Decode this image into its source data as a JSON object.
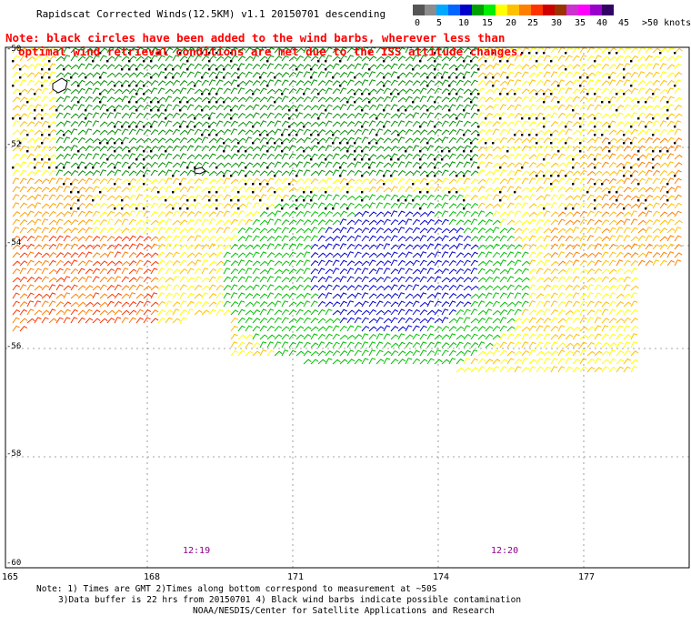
{
  "title": "Rapidscat Corrected Winds(12.5KM) v1.1 20150701 descending",
  "legend": {
    "colors": [
      "#555555",
      "#8c8c8c",
      "#00a8ff",
      "#0066ff",
      "#0000cc",
      "#00a000",
      "#00ee00",
      "#ffff00",
      "#ffc000",
      "#ff7f00",
      "#ff3300",
      "#cc0000",
      "#993300",
      "#cc33cc",
      "#ff00ff",
      "#9900cc",
      "#330066"
    ],
    "labels": [
      "0",
      "5",
      "10",
      "15",
      "20",
      "25",
      "30",
      "35",
      "40",
      "45",
      ">50 knots"
    ]
  },
  "note": {
    "line1": "Note: black circles have been added to the wind barbs, wherever less than",
    "line2": "optimal wind retrieval conditions are met due to the ISS attitude changes."
  },
  "axes": {
    "lat_labels": [
      "-50",
      "-52",
      "-54",
      "-56",
      "-58",
      "-60"
    ],
    "lon_labels": [
      "165",
      "168",
      "171",
      "174",
      "177"
    ]
  },
  "times": [
    "12:19",
    "12:20"
  ],
  "footer": {
    "line1": "Note: 1) Times are GMT 2)Times along bottom correspond to measurement at ~50S",
    "line2": "3)Data buffer is 22 hrs from 20150701 4) Black wind barbs indicate possible contamination",
    "line3": "NOAA/NESDIS/Center for Satellite Applications and Research"
  }
}
